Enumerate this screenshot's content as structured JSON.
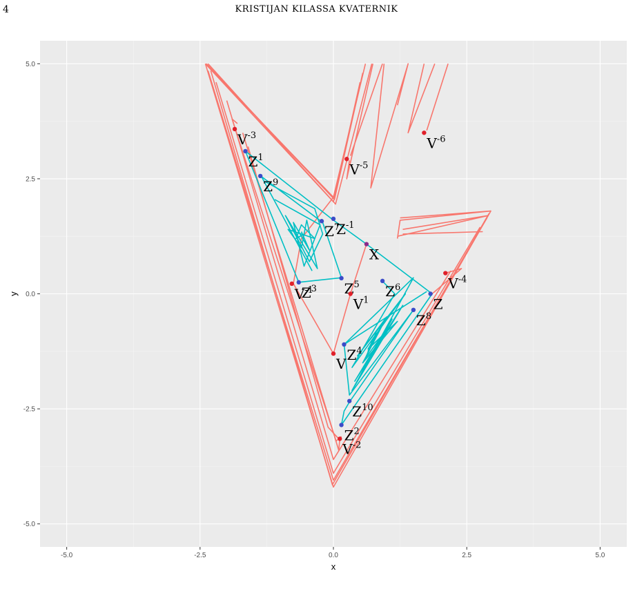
{
  "page": {
    "number": "4",
    "running_head": "KRISTIJAN KILASSA KVATERNIK"
  },
  "colors": {
    "panel": "#ebebeb",
    "grid_major": "#ffffff",
    "grid_minor": "#f5f5f5",
    "red_series": "#f8766d",
    "cyan_series": "#00bfc4",
    "red_point": "#e0202a",
    "blue_point": "#3b4cc8"
  },
  "chart_data": {
    "type": "line",
    "title": "",
    "xlabel": "x",
    "ylabel": "y",
    "xlim": [
      -5.5,
      5.5
    ],
    "ylim": [
      -5.5,
      5.5
    ],
    "grid": true,
    "legend": "none",
    "x_ticks": [
      "-5.0",
      "-2.5",
      "0.0",
      "2.5",
      "5.0"
    ],
    "x_tick_values": [
      -5,
      -2.5,
      0,
      2.5,
      5
    ],
    "y_ticks": [
      "-5.0",
      "-2.5",
      "0.0",
      "2.5",
      "5.0"
    ],
    "y_tick_values": [
      -5,
      -2.5,
      0,
      2.5,
      5
    ],
    "series": [
      {
        "color": "red",
        "paths": [
          [
            [
              -2.4,
              5.0
            ],
            [
              0.0,
              2.1
            ],
            [
              0.6,
              5.0
            ]
          ],
          [
            [
              -2.38,
              5.0
            ],
            [
              0.02,
              2.05
            ],
            [
              0.55,
              4.8
            ]
          ],
          [
            [
              -2.36,
              4.95
            ],
            [
              0.0,
              2.0
            ],
            [
              0.5,
              4.6
            ]
          ],
          [
            [
              -2.35,
              5.0
            ],
            [
              0.04,
              1.95
            ],
            [
              0.72,
              5.0
            ]
          ],
          [
            [
              0.3,
              2.9
            ],
            [
              0.25,
              2.5
            ],
            [
              0.74,
              5.0
            ]
          ],
          [
            [
              0.32,
              3.0
            ],
            [
              0.92,
              5.0
            ]
          ],
          [
            [
              0.95,
              5.0
            ],
            [
              0.7,
              2.3
            ],
            [
              1.4,
              5.0
            ],
            [
              1.2,
              4.1
            ]
          ],
          [
            [
              1.7,
              5.0
            ],
            [
              1.4,
              3.5
            ],
            [
              1.9,
              5.0
            ]
          ],
          [
            [
              1.75,
              3.55
            ],
            [
              2.15,
              5.0
            ]
          ],
          [
            [
              1.2,
              1.2
            ],
            [
              1.25,
              1.6
            ],
            [
              2.95,
              1.8
            ],
            [
              1.25,
              1.65
            ]
          ],
          [
            [
              1.2,
              1.25
            ],
            [
              2.9,
              1.7
            ],
            [
              1.3,
              1.4
            ]
          ],
          [
            [
              1.3,
              1.3
            ],
            [
              2.8,
              1.35
            ]
          ],
          [
            [
              2.95,
              1.8
            ],
            [
              0.0,
              -4.2
            ],
            [
              -2.4,
              5.0
            ]
          ],
          [
            [
              2.88,
              1.65
            ],
            [
              0.0,
              -4.05
            ],
            [
              -2.35,
              4.85
            ]
          ],
          [
            [
              2.75,
              1.45
            ],
            [
              0.0,
              -3.9
            ],
            [
              -2.2,
              4.6
            ]
          ],
          [
            [
              2.2,
              0.5
            ],
            [
              0.0,
              -3.6
            ],
            [
              -2.0,
              4.2
            ]
          ],
          [
            [
              -2.3,
              4.85
            ],
            [
              -0.02,
              -4.15
            ],
            [
              2.92,
              1.75
            ]
          ],
          [
            [
              -1.8,
              3.7
            ],
            [
              -1.9,
              3.8
            ],
            [
              0.05,
              -3.2
            ],
            [
              0.15,
              -3.1
            ]
          ],
          [
            [
              -1.7,
              3.5
            ],
            [
              0.1,
              -3.4
            ],
            [
              0.12,
              -3.15
            ]
          ],
          [
            [
              -1.6,
              3.2
            ],
            [
              -0.1,
              -2.9
            ],
            [
              0.1,
              -3.15
            ]
          ],
          [
            [
              -0.75,
              0.22
            ],
            [
              0.0,
              -1.3
            ],
            [
              0.32,
              0.0
            ],
            [
              0.62,
              1.08
            ]
          ],
          [
            [
              -0.75,
              0.22
            ],
            [
              -0.6,
              1.2
            ],
            [
              0.0,
              2.1
            ]
          ],
          [
            [
              2.1,
              0.45
            ],
            [
              2.4,
              0.55
            ],
            [
              1.85,
              0.0
            ]
          ]
        ]
      },
      {
        "color": "cyan",
        "paths": [
          [
            [
              -1.65,
              3.1
            ],
            [
              0.0,
              1.6
            ],
            [
              0.62,
              1.08
            ],
            [
              1.85,
              0.0
            ],
            [
              0.15,
              -2.85
            ],
            [
              0.2,
              -2.55
            ],
            [
              0.3,
              -2.35
            ]
          ],
          [
            [
              -1.65,
              3.1
            ],
            [
              -0.65,
              0.25
            ],
            [
              0.15,
              0.35
            ],
            [
              -0.2,
              1.55
            ],
            [
              -1.35,
              2.55
            ],
            [
              -0.4,
              0.5
            ]
          ],
          [
            [
              -1.3,
              2.45
            ],
            [
              -0.35,
              1.85
            ],
            [
              -0.2,
              1.3
            ],
            [
              -0.45,
              0.7
            ],
            [
              -0.9,
              1.7
            ],
            [
              -0.3,
              0.55
            ],
            [
              -0.5,
              1.6
            ],
            [
              -0.6,
              1.0
            ],
            [
              -0.85,
              1.4
            ],
            [
              -0.35,
              1.2
            ],
            [
              -0.6,
              1.5
            ],
            [
              -0.7,
              1.2
            ],
            [
              -0.55,
              1.3
            ]
          ],
          [
            [
              -1.1,
              2.05
            ],
            [
              -0.25,
              1.5
            ],
            [
              -0.55,
              0.6
            ],
            [
              -0.75,
              1.55
            ],
            [
              -0.45,
              0.95
            ],
            [
              -0.6,
              1.35
            ]
          ],
          [
            [
              0.9,
              0.3
            ],
            [
              1.15,
              0.0
            ],
            [
              0.35,
              -1.6
            ],
            [
              1.35,
              0.0
            ],
            [
              0.45,
              -1.35
            ],
            [
              1.0,
              -0.5
            ],
            [
              0.55,
              -1.5
            ],
            [
              1.2,
              -0.6
            ],
            [
              0.65,
              -1.2
            ],
            [
              0.95,
              -0.6
            ],
            [
              0.7,
              -1.15
            ],
            [
              0.85,
              -0.8
            ],
            [
              0.75,
              -1.05
            ]
          ],
          [
            [
              0.2,
              -1.1
            ],
            [
              1.5,
              0.35
            ],
            [
              0.35,
              -2.1
            ],
            [
              1.3,
              -0.25
            ],
            [
              0.4,
              -1.9
            ],
            [
              1.1,
              -0.55
            ],
            [
              0.55,
              -1.7
            ],
            [
              0.95,
              -0.85
            ],
            [
              0.6,
              -1.4
            ],
            [
              0.8,
              -0.85
            ],
            [
              0.65,
              -1.25
            ],
            [
              0.75,
              -0.95
            ]
          ],
          [
            [
              0.3,
              -2.35
            ],
            [
              1.5,
              -0.35
            ],
            [
              0.3,
              -2.2
            ],
            [
              0.2,
              -1.1
            ],
            [
              1.75,
              0.05
            ]
          ]
        ]
      }
    ],
    "points": [
      {
        "label": "V",
        "sup": "-3",
        "x": -1.85,
        "y": 3.58,
        "color": "red"
      },
      {
        "label": "Z",
        "sup": "1",
        "x": -1.65,
        "y": 3.1,
        "color": "blue"
      },
      {
        "label": "V",
        "sup": "-6",
        "x": 1.7,
        "y": 3.5,
        "color": "red"
      },
      {
        "label": "V",
        "sup": "-5",
        "x": 0.25,
        "y": 2.93,
        "color": "red"
      },
      {
        "label": "Z",
        "sup": "9",
        "x": -1.37,
        "y": 2.56,
        "color": "blue"
      },
      {
        "label": "Z",
        "sup": "-1",
        "x": 0.0,
        "y": 1.63,
        "color": "blue"
      },
      {
        "label": "Z",
        "sup": "7",
        "x": -0.22,
        "y": 1.58,
        "color": "blue"
      },
      {
        "label": "X",
        "sup": "",
        "x": 0.62,
        "y": 1.08,
        "color": "purple"
      },
      {
        "label": "V",
        "sup": "-4",
        "x": 2.1,
        "y": 0.45,
        "color": "red"
      },
      {
        "label": "Z",
        "sup": "5",
        "x": 0.15,
        "y": 0.34,
        "color": "blue"
      },
      {
        "label": "Z",
        "sup": "6",
        "x": 0.92,
        "y": 0.28,
        "color": "blue"
      },
      {
        "label": "V",
        "sup": "-1",
        "x": -0.78,
        "y": 0.22,
        "color": "red"
      },
      {
        "label": "Z",
        "sup": "3",
        "x": -0.65,
        "y": 0.25,
        "color": "blue"
      },
      {
        "label": "Z",
        "sup": "",
        "x": 1.82,
        "y": 0.0,
        "color": "blue"
      },
      {
        "label": "V",
        "sup": "1",
        "x": 0.32,
        "y": 0.0,
        "color": "red"
      },
      {
        "label": "Z",
        "sup": "8",
        "x": 1.5,
        "y": -0.35,
        "color": "blue"
      },
      {
        "label": "Z",
        "sup": "4",
        "x": 0.2,
        "y": -1.1,
        "color": "blue"
      },
      {
        "label": "V",
        "sup": "",
        "x": 0.0,
        "y": -1.3,
        "color": "red"
      },
      {
        "label": "Z",
        "sup": "10",
        "x": 0.3,
        "y": -2.33,
        "color": "blue"
      },
      {
        "label": "Z",
        "sup": "2",
        "x": 0.15,
        "y": -2.85,
        "color": "blue"
      },
      {
        "label": "V",
        "sup": "-2",
        "x": 0.12,
        "y": -3.15,
        "color": "red"
      }
    ]
  }
}
